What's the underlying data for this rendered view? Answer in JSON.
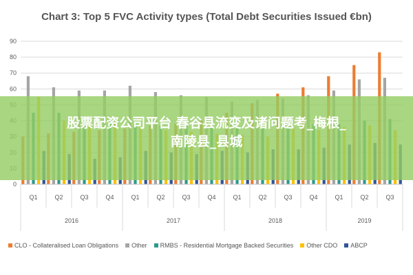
{
  "chart_data": {
    "type": "bar",
    "title": "Chart 3: Top 5 FVC Activity types (Total Debt Securities Issued €bn)",
    "ylim": [
      0,
      90
    ],
    "yticks": [
      "0",
      "10",
      "20",
      "30",
      "40",
      "50",
      "60",
      "70",
      "80",
      "90"
    ],
    "grid": true,
    "legend_position": "bottom",
    "categories": [
      "Q1",
      "Q2",
      "Q3",
      "Q4",
      "Q1",
      "Q2",
      "Q3",
      "Q4",
      "Q1",
      "Q2",
      "Q3",
      "Q4",
      "Q1",
      "Q2",
      "Q3"
    ],
    "years": [
      {
        "label": "2016",
        "quarters": 4
      },
      {
        "label": "2017",
        "quarters": 4
      },
      {
        "label": "2018",
        "quarters": 4
      },
      {
        "label": "2019",
        "quarters": 3
      }
    ],
    "series": [
      {
        "name": "CLO - Collateralised Loan Obligations",
        "color": "#ed7d31",
        "values": [
          30,
          32,
          33,
          34,
          35,
          37,
          38,
          40,
          45,
          51,
          57,
          61,
          68,
          75,
          83
        ]
      },
      {
        "name": "Other",
        "color": "#a5a5a5",
        "values": [
          68,
          61,
          59,
          59,
          62,
          58,
          56,
          55,
          52,
          53,
          54,
          56,
          59,
          66,
          67
        ]
      },
      {
        "name": "RMBS - Residential Mortgage Backed Securities",
        "color": "#2e9a8c",
        "values": [
          45,
          45,
          40,
          40,
          38,
          37,
          37,
          36,
          35,
          36,
          37,
          38,
          38,
          40,
          41
        ]
      },
      {
        "name": "Other CDO",
        "color": "#ffc000",
        "values": [
          55,
          40,
          38,
          38,
          36,
          34,
          33,
          32,
          31,
          30,
          35,
          34,
          36,
          37,
          34
        ]
      },
      {
        "name": "ABCP",
        "color": "#2f5597",
        "values": [
          21,
          19,
          16,
          17,
          21,
          20,
          19,
          21,
          20,
          22,
          22,
          23,
          25,
          26,
          25
        ]
      }
    ]
  },
  "overlay": {
    "line1": "股票配资公司平台 春谷县流变及诸问题考_梅根_",
    "line2": "南陵县_县城"
  }
}
